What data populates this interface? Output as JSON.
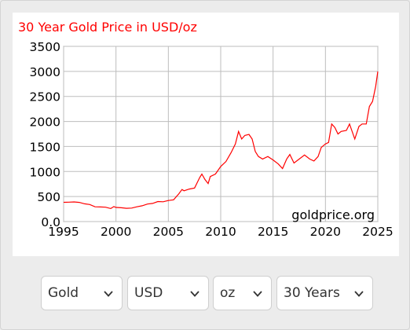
{
  "chart_data": {
    "type": "line",
    "title": "30 Year Gold Price in USD/oz",
    "watermark": "goldprice.org",
    "xlim": [
      1995,
      2025
    ],
    "ylim": [
      0,
      3500
    ],
    "x_ticks": [
      "1995",
      "2000",
      "2005",
      "2010",
      "2015",
      "2020",
      "2025"
    ],
    "y_ticks": [
      "3500",
      "3000",
      "2500",
      "2000",
      "1500",
      "1000",
      "500",
      "0.0"
    ],
    "grid": true,
    "line_color": "#ff0000",
    "series": [
      {
        "x": [
          1995.0,
          1995.5,
          1996.0,
          1996.5,
          1997.0,
          1997.5,
          1998.0,
          1998.5,
          1999.0,
          1999.5,
          1999.8,
          2000.0,
          2000.5,
          2001.0,
          2001.5,
          2002.0,
          2002.5,
          2003.0,
          2003.5,
          2004.0,
          2004.5,
          2005.0,
          2005.5,
          2006.0,
          2006.3,
          2006.5,
          2007.0,
          2007.5,
          2008.0,
          2008.2,
          2008.5,
          2008.8,
          2009.0,
          2009.5,
          2010.0,
          2010.5,
          2011.0,
          2011.4,
          2011.7,
          2012.0,
          2012.3,
          2012.7,
          2013.0,
          2013.3,
          2013.6,
          2014.0,
          2014.5,
          2015.0,
          2015.5,
          2015.9,
          2016.3,
          2016.6,
          2017.0,
          2017.5,
          2018.0,
          2018.5,
          2018.9,
          2019.3,
          2019.6,
          2020.0,
          2020.3,
          2020.6,
          2020.9,
          2021.2,
          2021.5,
          2022.0,
          2022.3,
          2022.8,
          2023.2,
          2023.5,
          2023.9,
          2024.2,
          2024.5,
          2024.8,
          2025.0
        ],
        "y": [
          384,
          387,
          392,
          383,
          355,
          340,
          295,
          292,
          287,
          260,
          300,
          282,
          276,
          265,
          270,
          295,
          315,
          350,
          362,
          400,
          395,
          420,
          435,
          555,
          640,
          615,
          650,
          670,
          880,
          950,
          840,
          760,
          900,
          950,
          1100,
          1200,
          1380,
          1550,
          1800,
          1650,
          1720,
          1740,
          1650,
          1400,
          1300,
          1250,
          1300,
          1230,
          1150,
          1060,
          1250,
          1340,
          1170,
          1250,
          1330,
          1250,
          1210,
          1300,
          1480,
          1550,
          1580,
          1950,
          1880,
          1750,
          1800,
          1820,
          1950,
          1650,
          1900,
          1950,
          1950,
          2300,
          2400,
          2700,
          3000
        ]
      }
    ]
  },
  "controls": {
    "metal": "Gold",
    "currency": "USD",
    "unit": "oz",
    "period": "30 Years"
  },
  "icons": {
    "dropdown": "chevron-down-icon"
  }
}
